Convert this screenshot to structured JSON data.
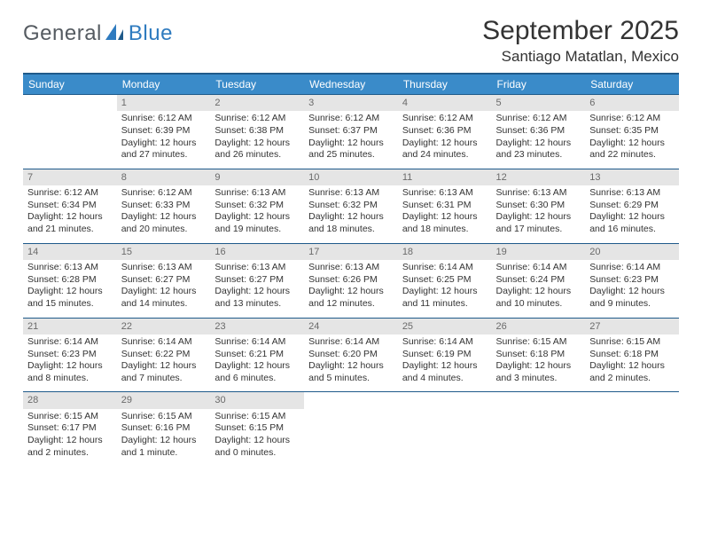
{
  "logo": {
    "part1": "General",
    "part2": "Blue"
  },
  "title": "September 2025",
  "location": "Santiago Matatlan, Mexico",
  "colors": {
    "header_bg": "#3a8bc9",
    "header_border": "#1f5a8a",
    "daynum_bg": "#e5e5e5",
    "daynum_fg": "#6a6a6a",
    "text": "#333333",
    "logo_gray": "#555b61",
    "logo_blue": "#2f7bbf"
  },
  "weekdays": [
    "Sunday",
    "Monday",
    "Tuesday",
    "Wednesday",
    "Thursday",
    "Friday",
    "Saturday"
  ],
  "weeks": [
    [
      {
        "n": "",
        "sr": "",
        "ss": "",
        "dl": ""
      },
      {
        "n": "1",
        "sr": "Sunrise: 6:12 AM",
        "ss": "Sunset: 6:39 PM",
        "dl": "Daylight: 12 hours and 27 minutes."
      },
      {
        "n": "2",
        "sr": "Sunrise: 6:12 AM",
        "ss": "Sunset: 6:38 PM",
        "dl": "Daylight: 12 hours and 26 minutes."
      },
      {
        "n": "3",
        "sr": "Sunrise: 6:12 AM",
        "ss": "Sunset: 6:37 PM",
        "dl": "Daylight: 12 hours and 25 minutes."
      },
      {
        "n": "4",
        "sr": "Sunrise: 6:12 AM",
        "ss": "Sunset: 6:36 PM",
        "dl": "Daylight: 12 hours and 24 minutes."
      },
      {
        "n": "5",
        "sr": "Sunrise: 6:12 AM",
        "ss": "Sunset: 6:36 PM",
        "dl": "Daylight: 12 hours and 23 minutes."
      },
      {
        "n": "6",
        "sr": "Sunrise: 6:12 AM",
        "ss": "Sunset: 6:35 PM",
        "dl": "Daylight: 12 hours and 22 minutes."
      }
    ],
    [
      {
        "n": "7",
        "sr": "Sunrise: 6:12 AM",
        "ss": "Sunset: 6:34 PM",
        "dl": "Daylight: 12 hours and 21 minutes."
      },
      {
        "n": "8",
        "sr": "Sunrise: 6:12 AM",
        "ss": "Sunset: 6:33 PM",
        "dl": "Daylight: 12 hours and 20 minutes."
      },
      {
        "n": "9",
        "sr": "Sunrise: 6:13 AM",
        "ss": "Sunset: 6:32 PM",
        "dl": "Daylight: 12 hours and 19 minutes."
      },
      {
        "n": "10",
        "sr": "Sunrise: 6:13 AM",
        "ss": "Sunset: 6:32 PM",
        "dl": "Daylight: 12 hours and 18 minutes."
      },
      {
        "n": "11",
        "sr": "Sunrise: 6:13 AM",
        "ss": "Sunset: 6:31 PM",
        "dl": "Daylight: 12 hours and 18 minutes."
      },
      {
        "n": "12",
        "sr": "Sunrise: 6:13 AM",
        "ss": "Sunset: 6:30 PM",
        "dl": "Daylight: 12 hours and 17 minutes."
      },
      {
        "n": "13",
        "sr": "Sunrise: 6:13 AM",
        "ss": "Sunset: 6:29 PM",
        "dl": "Daylight: 12 hours and 16 minutes."
      }
    ],
    [
      {
        "n": "14",
        "sr": "Sunrise: 6:13 AM",
        "ss": "Sunset: 6:28 PM",
        "dl": "Daylight: 12 hours and 15 minutes."
      },
      {
        "n": "15",
        "sr": "Sunrise: 6:13 AM",
        "ss": "Sunset: 6:27 PM",
        "dl": "Daylight: 12 hours and 14 minutes."
      },
      {
        "n": "16",
        "sr": "Sunrise: 6:13 AM",
        "ss": "Sunset: 6:27 PM",
        "dl": "Daylight: 12 hours and 13 minutes."
      },
      {
        "n": "17",
        "sr": "Sunrise: 6:13 AM",
        "ss": "Sunset: 6:26 PM",
        "dl": "Daylight: 12 hours and 12 minutes."
      },
      {
        "n": "18",
        "sr": "Sunrise: 6:14 AM",
        "ss": "Sunset: 6:25 PM",
        "dl": "Daylight: 12 hours and 11 minutes."
      },
      {
        "n": "19",
        "sr": "Sunrise: 6:14 AM",
        "ss": "Sunset: 6:24 PM",
        "dl": "Daylight: 12 hours and 10 minutes."
      },
      {
        "n": "20",
        "sr": "Sunrise: 6:14 AM",
        "ss": "Sunset: 6:23 PM",
        "dl": "Daylight: 12 hours and 9 minutes."
      }
    ],
    [
      {
        "n": "21",
        "sr": "Sunrise: 6:14 AM",
        "ss": "Sunset: 6:23 PM",
        "dl": "Daylight: 12 hours and 8 minutes."
      },
      {
        "n": "22",
        "sr": "Sunrise: 6:14 AM",
        "ss": "Sunset: 6:22 PM",
        "dl": "Daylight: 12 hours and 7 minutes."
      },
      {
        "n": "23",
        "sr": "Sunrise: 6:14 AM",
        "ss": "Sunset: 6:21 PM",
        "dl": "Daylight: 12 hours and 6 minutes."
      },
      {
        "n": "24",
        "sr": "Sunrise: 6:14 AM",
        "ss": "Sunset: 6:20 PM",
        "dl": "Daylight: 12 hours and 5 minutes."
      },
      {
        "n": "25",
        "sr": "Sunrise: 6:14 AM",
        "ss": "Sunset: 6:19 PM",
        "dl": "Daylight: 12 hours and 4 minutes."
      },
      {
        "n": "26",
        "sr": "Sunrise: 6:15 AM",
        "ss": "Sunset: 6:18 PM",
        "dl": "Daylight: 12 hours and 3 minutes."
      },
      {
        "n": "27",
        "sr": "Sunrise: 6:15 AM",
        "ss": "Sunset: 6:18 PM",
        "dl": "Daylight: 12 hours and 2 minutes."
      }
    ],
    [
      {
        "n": "28",
        "sr": "Sunrise: 6:15 AM",
        "ss": "Sunset: 6:17 PM",
        "dl": "Daylight: 12 hours and 2 minutes."
      },
      {
        "n": "29",
        "sr": "Sunrise: 6:15 AM",
        "ss": "Sunset: 6:16 PM",
        "dl": "Daylight: 12 hours and 1 minute."
      },
      {
        "n": "30",
        "sr": "Sunrise: 6:15 AM",
        "ss": "Sunset: 6:15 PM",
        "dl": "Daylight: 12 hours and 0 minutes."
      },
      {
        "n": "",
        "sr": "",
        "ss": "",
        "dl": ""
      },
      {
        "n": "",
        "sr": "",
        "ss": "",
        "dl": ""
      },
      {
        "n": "",
        "sr": "",
        "ss": "",
        "dl": ""
      },
      {
        "n": "",
        "sr": "",
        "ss": "",
        "dl": ""
      }
    ]
  ]
}
